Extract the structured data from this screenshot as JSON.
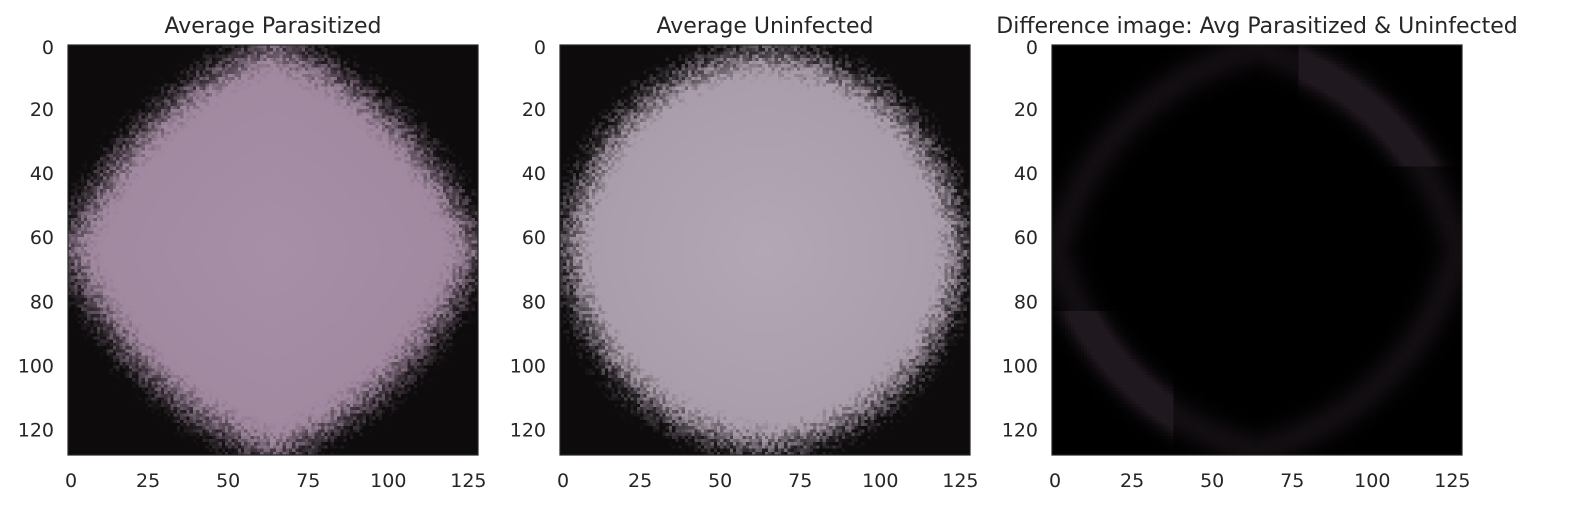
{
  "chart_data": [
    {
      "type": "heatmap",
      "title": "Average Parasitized",
      "xlim": [
        0,
        128
      ],
      "ylim": [
        128,
        0
      ],
      "xticks": [
        0,
        25,
        50,
        75,
        100,
        125
      ],
      "yticks": [
        0,
        20,
        40,
        60,
        80,
        100,
        120
      ],
      "image": {
        "kind": "averaged-cell",
        "fill": "#a0889f",
        "center": "#a78fa8",
        "edge": "#0d0b0c",
        "cell_radius": 0.5,
        "softness": 0.09,
        "shape_rounding": 0.55
      },
      "grid": false
    },
    {
      "type": "heatmap",
      "title": "Average Uninfected",
      "xlim": [
        0,
        128
      ],
      "ylim": [
        128,
        0
      ],
      "xticks": [
        0,
        25,
        50,
        75,
        100,
        125
      ],
      "yticks": [
        0,
        20,
        40,
        60,
        80,
        100,
        120
      ],
      "image": {
        "kind": "averaged-cell",
        "fill": "#a99caa",
        "center": "#b3a6b5",
        "edge": "#0d0b0c",
        "cell_radius": 0.5,
        "softness": 0.08,
        "shape_rounding": 0.9
      },
      "grid": false
    },
    {
      "type": "heatmap",
      "title": "Difference image: Avg Parasitized & Uninfected",
      "xlim": [
        0,
        128
      ],
      "ylim": [
        128,
        0
      ],
      "xticks": [
        0,
        25,
        50,
        75,
        100,
        125
      ],
      "yticks": [
        0,
        20,
        40,
        60,
        80,
        100,
        120
      ],
      "image": {
        "kind": "difference",
        "fill": "#020001",
        "center": "#000000",
        "edge": "#20181f",
        "cell_radius": 0.5,
        "softness": 0.06,
        "shape_rounding": 0.7
      },
      "grid": false
    }
  ],
  "colors": {
    "text": "#262626",
    "axes_edge": "#262626",
    "background": "#ffffff"
  }
}
